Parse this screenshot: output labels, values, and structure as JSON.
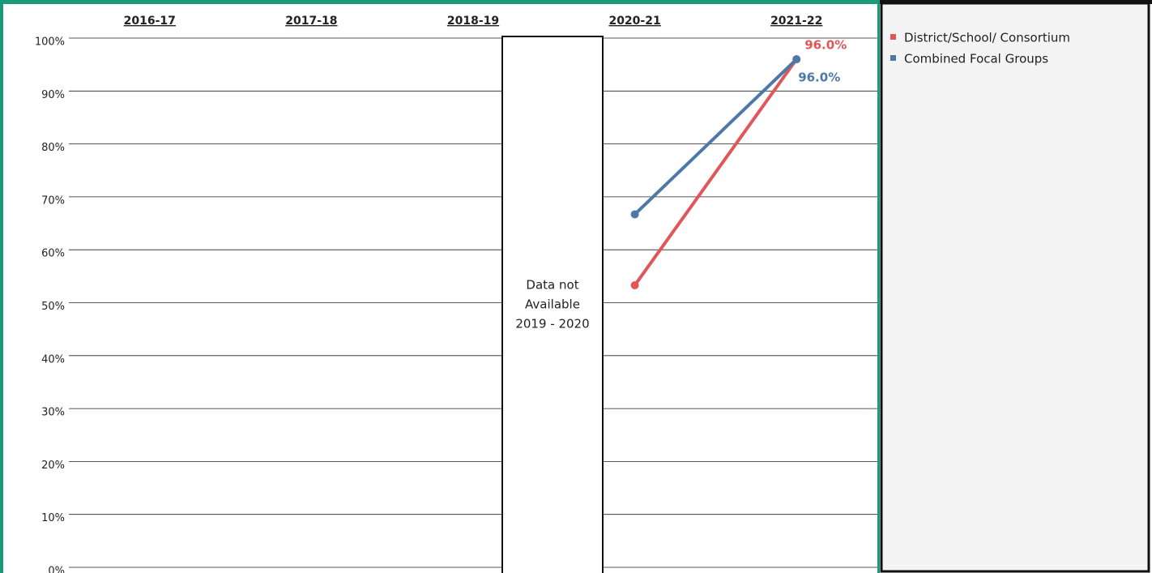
{
  "chart_data": {
    "type": "line",
    "categories": [
      "2016-17",
      "2017-18",
      "2018-19",
      "2020-21",
      "2021-22"
    ],
    "series": [
      {
        "name": "District/School/ Consortium",
        "color": "#e15759",
        "values": [
          null,
          null,
          null,
          53.3,
          96.0
        ],
        "value_labels": [
          null,
          null,
          null,
          null,
          "96.0%"
        ]
      },
      {
        "name": "Combined Focal Groups",
        "color": "#4e79a7",
        "values": [
          null,
          null,
          null,
          66.7,
          96.0
        ],
        "value_labels": [
          null,
          null,
          null,
          null,
          "96.0%"
        ]
      }
    ],
    "ylim": [
      0,
      100
    ],
    "yticks": [
      {
        "value": 0,
        "label": "0%"
      },
      {
        "value": 10,
        "label": "10%"
      },
      {
        "value": 20,
        "label": "20%"
      },
      {
        "value": 30,
        "label": "30%"
      },
      {
        "value": 40,
        "label": "40%"
      },
      {
        "value": 50,
        "label": "50%"
      },
      {
        "value": 60,
        "label": "60%"
      },
      {
        "value": 70,
        "label": "70%"
      },
      {
        "value": 80,
        "label": "80%"
      },
      {
        "value": 90,
        "label": "90%"
      },
      {
        "value": 100,
        "label": "100%"
      }
    ],
    "grid": true,
    "annotation": [
      "Data not",
      "Available",
      "2019 - 2020"
    ]
  }
}
